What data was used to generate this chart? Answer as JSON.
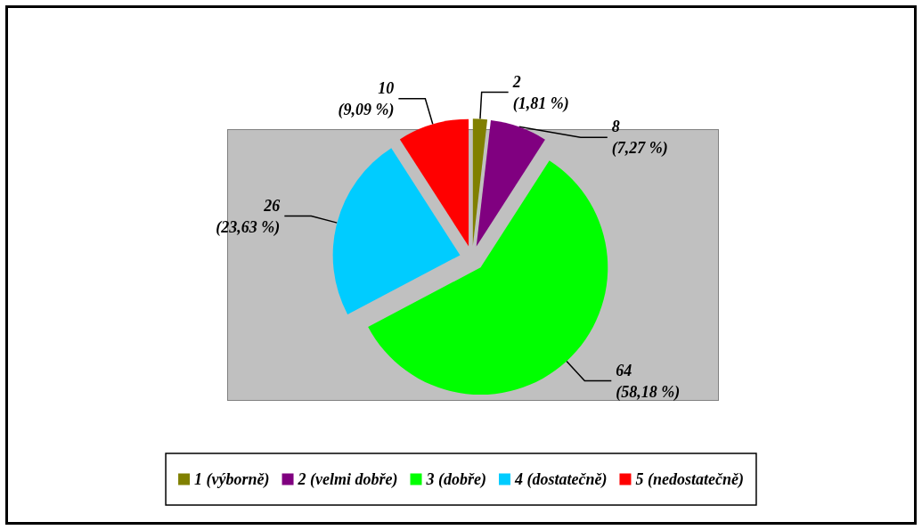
{
  "chart_data": {
    "type": "pie",
    "categories": [
      "1 (výborně)",
      "2 (velmi dobře)",
      "3 (dobře)",
      "4 (dostatečně)",
      "5 (nedostatečně)"
    ],
    "values": [
      2,
      8,
      64,
      26,
      10
    ],
    "colors": [
      "#808000",
      "#800080",
      "#00ff00",
      "#00ccff",
      "#ff0000"
    ],
    "value_labels": [
      "2\n(1,81 %)",
      "8\n(7,27 %)",
      "64\n(58,18 %)",
      "26\n(23,63 %)",
      "10\n(9,09 %)"
    ],
    "legend": "bottom"
  }
}
